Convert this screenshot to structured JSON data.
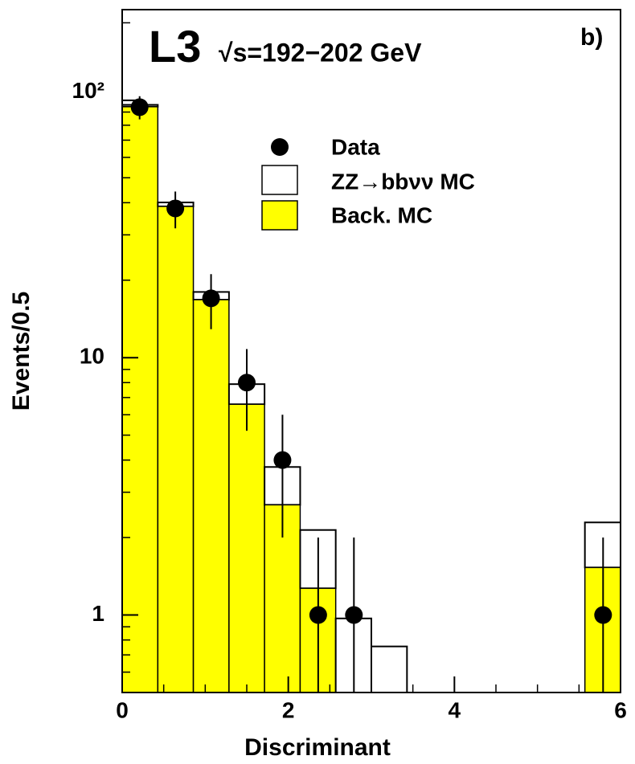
{
  "chart_data": {
    "type": "histogram",
    "title": "L3",
    "subtitle": "√s=192−202 GeV",
    "annotation": "b)",
    "x_label": "Discriminant",
    "y_label": "Events/0.5",
    "log_y": true,
    "bins": [
      0,
      0.429,
      0.857,
      1.286,
      1.714,
      2.143,
      2.571,
      3,
      3.429,
      3.857,
      4.286,
      4.714,
      5.143,
      5.571,
      6
    ],
    "series": [
      {
        "name": "Back. MC",
        "color": "#ffff00",
        "values": [
          94.4,
          38.7,
          16.8,
          6.59,
          2.68,
          1.27,
          0,
          0,
          0,
          0,
          0,
          0,
          0,
          1.53
        ]
      },
      {
        "name": "ZZ→bbνν MC",
        "color": "#ffffff",
        "values": [
          1.6,
          1.4,
          1.2,
          1.3,
          1.08,
          0.87,
          0.97,
          0.755,
          0,
          0,
          0,
          0,
          0,
          0.76
        ]
      }
    ],
    "data_points": {
      "name": "Data",
      "color": "#000000",
      "x": [
        0.21,
        0.64,
        1.07,
        1.5,
        1.93,
        2.36,
        2.79,
        5.79
      ],
      "values": [
        94,
        38,
        17,
        8,
        4,
        1,
        1,
        1
      ],
      "errors": [
        9.7,
        6.2,
        4.1,
        2.8,
        2,
        1,
        1,
        1
      ]
    },
    "xlim": [
      0,
      6
    ],
    "ylim": [
      0.5,
      225
    ],
    "xticks": [
      0,
      2,
      4,
      6
    ],
    "xminorticks": [
      0.5,
      1,
      1.5,
      2.5,
      3,
      3.5,
      4.5,
      5,
      5.5
    ],
    "yticks": [
      1,
      10,
      {
        "value": 100,
        "label": "10²"
      }
    ],
    "yminorticks": [
      0.6,
      0.7,
      0.8,
      0.9,
      2,
      3,
      4,
      5,
      6,
      7,
      8,
      9,
      20,
      30,
      40,
      50,
      60,
      70,
      80,
      90,
      200
    ]
  }
}
